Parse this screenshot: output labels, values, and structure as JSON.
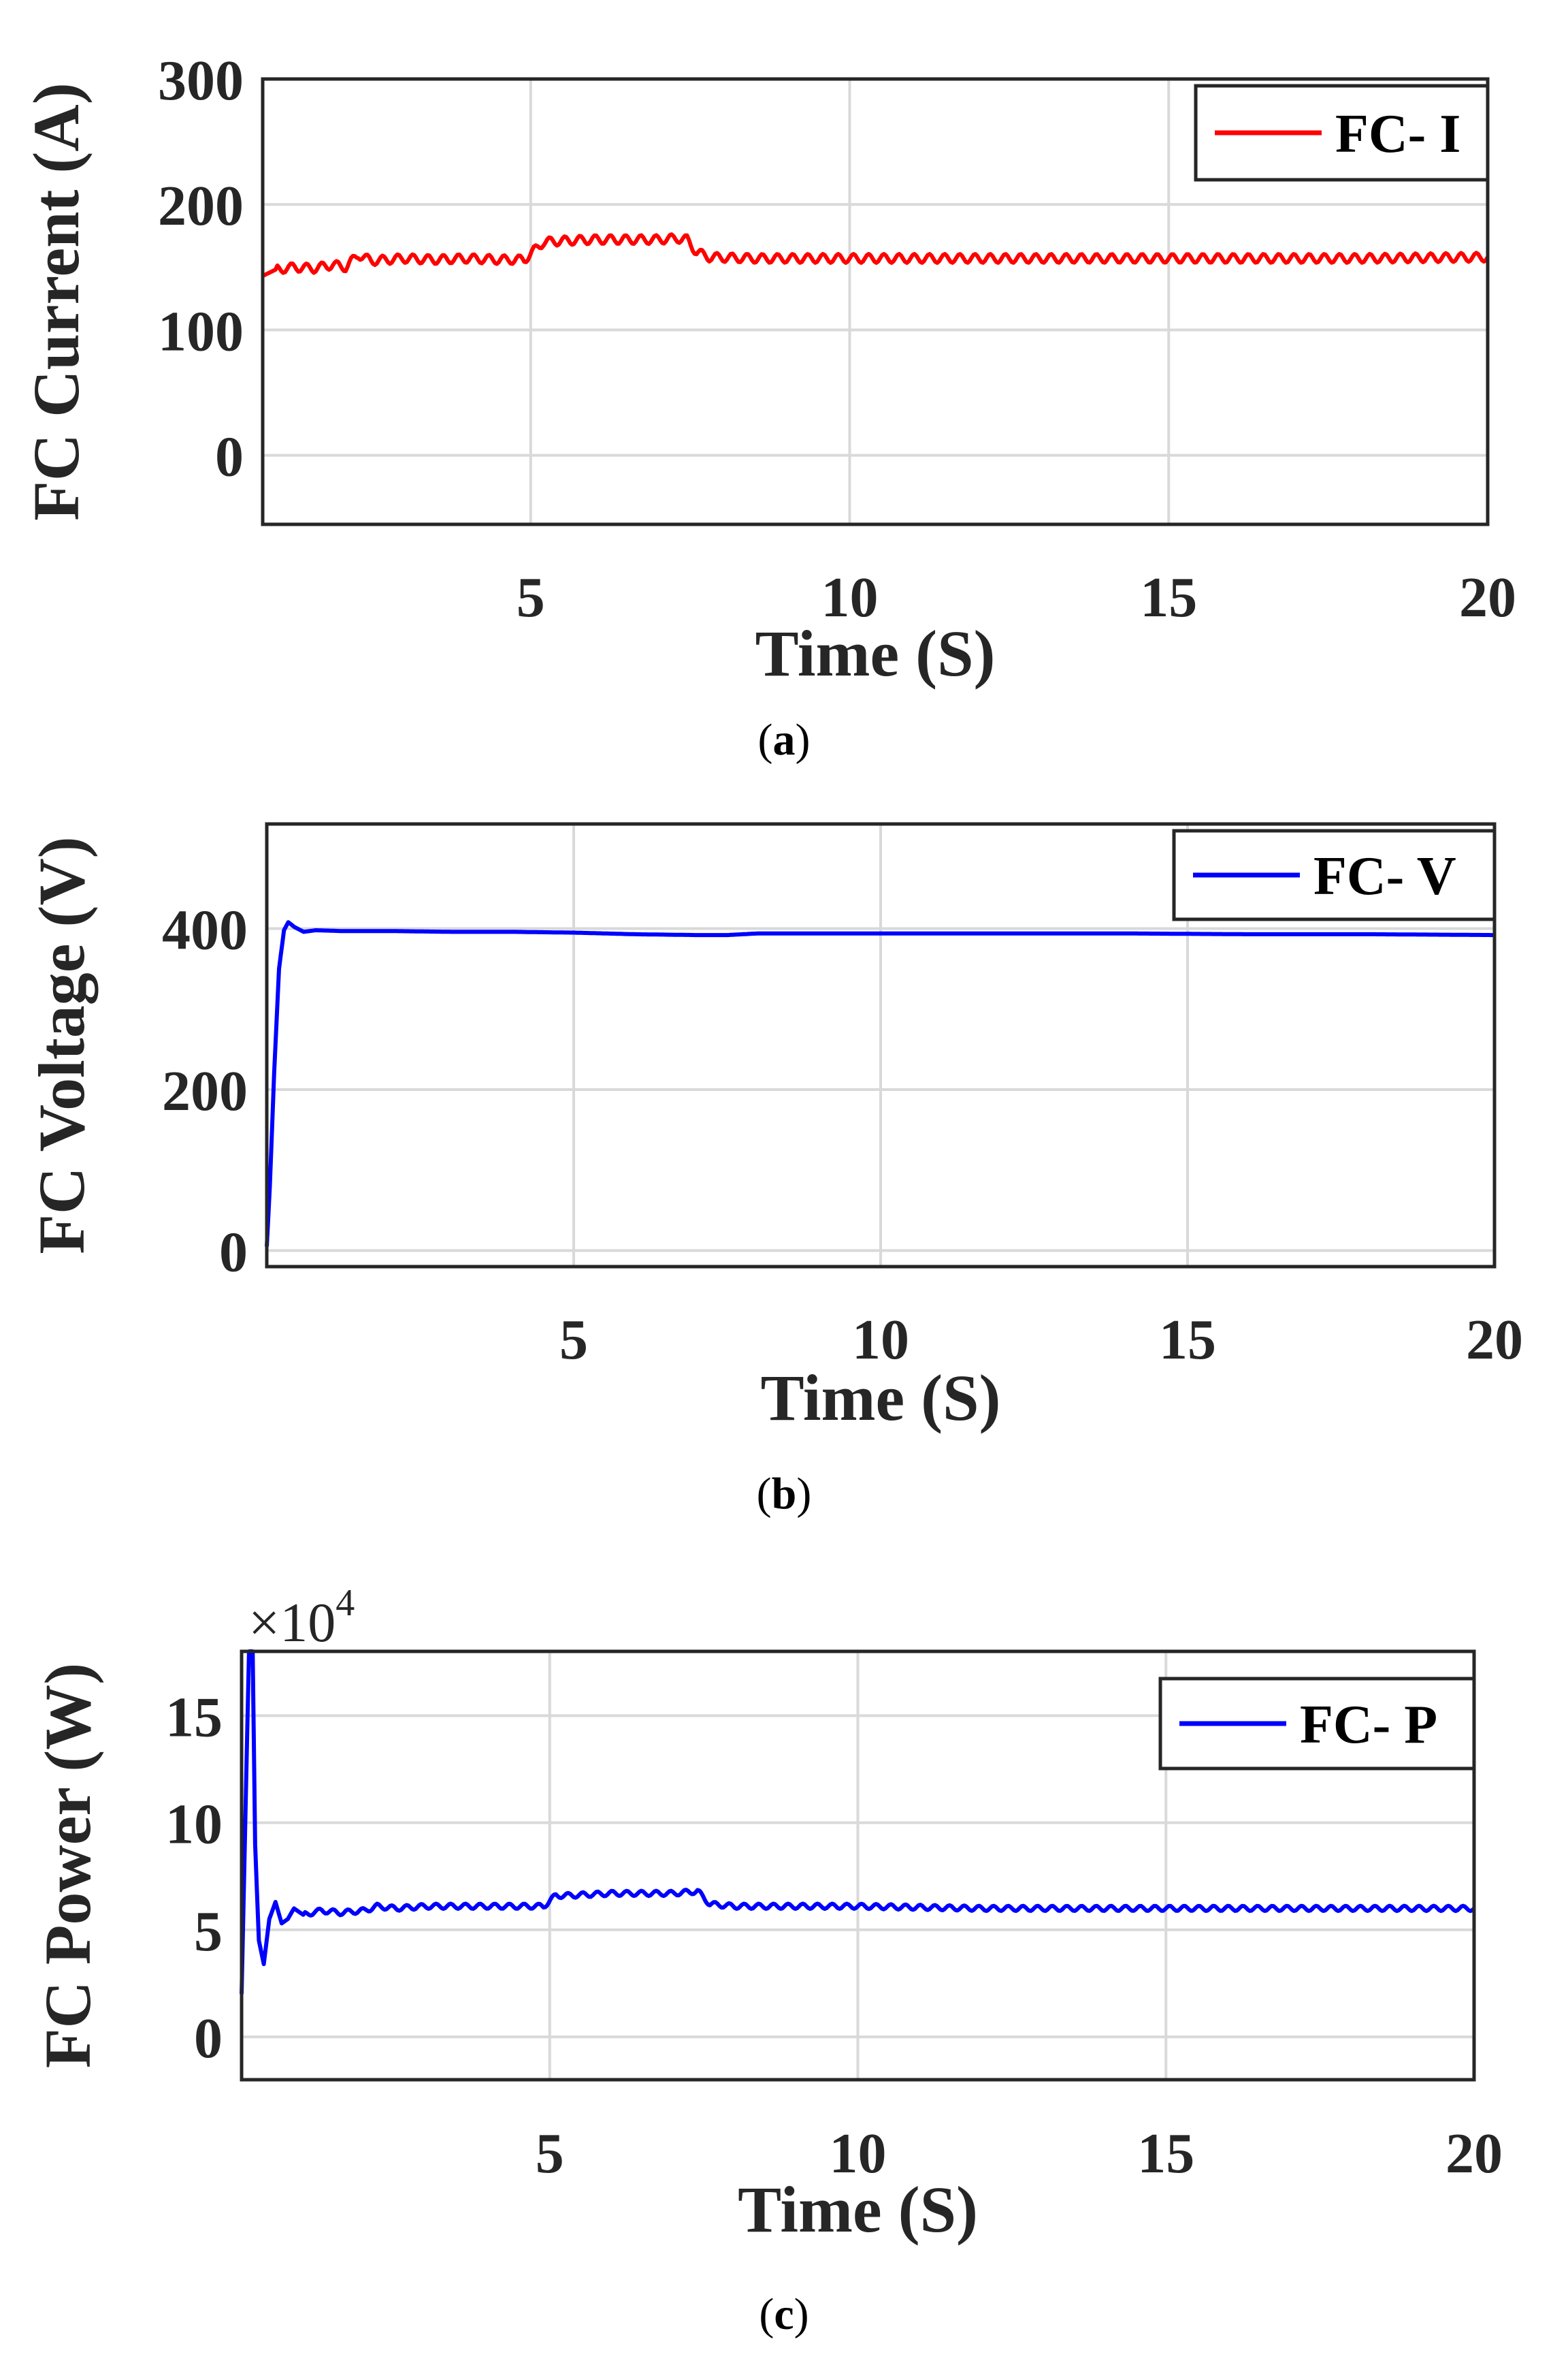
{
  "chart_data": [
    {
      "type": "line",
      "panel": "a",
      "caption_letter": "a",
      "xlabel": "Time (S)",
      "ylabel": "FC Current (A)",
      "xlim": [
        0.8,
        20
      ],
      "ylim": [
        -55,
        300
      ],
      "xticks": [
        5,
        10,
        15,
        20
      ],
      "yticks": [
        0,
        100,
        200,
        300
      ],
      "grid": true,
      "legend": "top-right",
      "multiplier": "",
      "series": [
        {
          "name": "FC- I",
          "color": "#ff0000",
          "x": [
            0.8,
            1.0,
            1.3,
            1.6,
            1.9,
            2.1,
            2.3,
            2.5,
            3.0,
            3.5,
            4.0,
            4.5,
            4.9,
            5.05,
            5.2,
            5.5,
            6.0,
            6.5,
            7.0,
            7.3,
            7.45,
            7.6,
            7.8,
            8.5,
            10,
            12,
            14,
            16,
            18,
            20
          ],
          "y": [
            143,
            148,
            150,
            149,
            152,
            150,
            160,
            155,
            157,
            156,
            157,
            156,
            156,
            163,
            170,
            171,
            172,
            172,
            172,
            173,
            172,
            162,
            158,
            157,
            157,
            157,
            157,
            157,
            157,
            158
          ],
          "ripple": 3.5
        }
      ]
    },
    {
      "type": "line",
      "panel": "b",
      "caption_letter": "b",
      "xlabel": "Time (S)",
      "ylabel": "FC Voltage (V)",
      "xlim": [
        0,
        20
      ],
      "ylim": [
        -20,
        530
      ],
      "xticks": [
        5,
        10,
        15,
        20
      ],
      "yticks": [
        0,
        200,
        400
      ],
      "grid": true,
      "legend": "top-right",
      "multiplier": "",
      "series": [
        {
          "name": "FC- V",
          "color": "#0000ff",
          "x": [
            0.0,
            0.05,
            0.12,
            0.2,
            0.28,
            0.35,
            0.45,
            0.6,
            0.8,
            1.2,
            2,
            3,
            4,
            5,
            6,
            7,
            7.5,
            8,
            10,
            12,
            14,
            16,
            18,
            20
          ],
          "y": [
            5,
            80,
            220,
            350,
            398,
            408,
            402,
            396,
            398,
            397,
            397,
            396,
            396,
            395,
            393,
            392,
            392,
            394,
            394,
            394,
            394,
            393,
            393,
            392
          ],
          "ripple": 0
        }
      ]
    },
    {
      "type": "line",
      "panel": "c",
      "caption_letter": "c",
      "xlabel": "Time (S)",
      "ylabel": "FC Power (W)",
      "xlim": [
        0,
        20
      ],
      "ylim": [
        -2,
        18
      ],
      "xticks": [
        5,
        10,
        15,
        20
      ],
      "yticks": [
        0,
        5,
        10,
        15
      ],
      "grid": true,
      "legend": "top-right",
      "multiplier": "×10",
      "multiplier_exp": "4",
      "series": [
        {
          "name": "FC- P",
          "color": "#0000ff",
          "x": [
            0.0,
            0.06,
            0.12,
            0.18,
            0.22,
            0.28,
            0.36,
            0.45,
            0.55,
            0.65,
            0.75,
            0.85,
            1.0,
            1.3,
            1.6,
            2.0,
            2.2,
            2.5,
            3,
            4,
            4.9,
            5.1,
            5.3,
            6,
            7,
            7.4,
            7.6,
            8,
            10,
            12,
            14,
            16,
            18,
            20
          ],
          "y": [
            2.0,
            10.0,
            18.0,
            18.0,
            9.0,
            4.5,
            3.4,
            5.5,
            6.3,
            5.3,
            5.5,
            6.0,
            5.7,
            5.9,
            5.8,
            5.9,
            6.1,
            6.0,
            6.1,
            6.1,
            6.1,
            6.6,
            6.6,
            6.7,
            6.7,
            6.8,
            6.2,
            6.1,
            6.1,
            6.0,
            6.0,
            6.0,
            6.0,
            6.0
          ],
          "ripple": 0.12
        }
      ]
    }
  ]
}
